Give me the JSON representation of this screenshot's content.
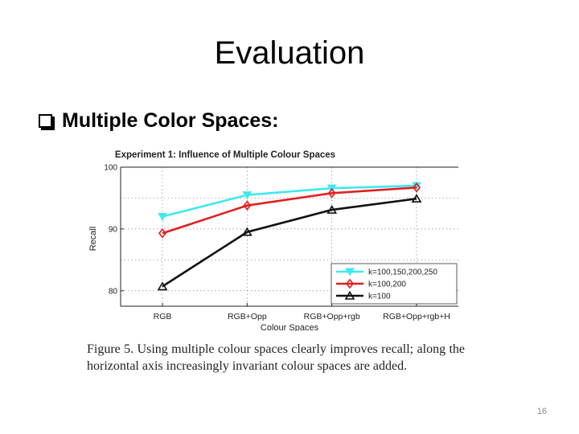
{
  "slide": {
    "title": "Evaluation",
    "bullet": "Multiple Color Spaces:",
    "caption": "Figure 5. Using multiple colour spaces clearly improves recall; along the horizontal axis increasingly invariant colour spaces are added.",
    "page_number": "16"
  },
  "colors": {
    "cyan": "#3ee8f0",
    "red": "#e02020",
    "black": "#111111"
  },
  "chart_data": {
    "type": "line",
    "title": "Experiment 1: Influence of Multiple Colour Spaces",
    "xlabel": "Colour Spaces",
    "ylabel": "Recall",
    "categories": [
      "RGB",
      "RGB+Opp",
      "RGB+Opp+rgb",
      "RGB+Opp+rgb+H"
    ],
    "ylim": [
      77.5,
      100
    ],
    "yticks": [
      80,
      90,
      100
    ],
    "grid": true,
    "legend_position": "bottom-right",
    "series": [
      {
        "name": "k=100,150,200,250",
        "values": [
          92.0,
          95.5,
          96.6,
          97.0
        ],
        "color": "#3ee8f0",
        "marker": "triangle-down"
      },
      {
        "name": "k=100,200",
        "values": [
          89.3,
          93.8,
          95.8,
          96.7
        ],
        "color": "#e02020",
        "marker": "diamond"
      },
      {
        "name": "k=100",
        "values": [
          80.7,
          89.5,
          93.1,
          94.9
        ],
        "color": "#111111",
        "marker": "triangle-up"
      }
    ]
  }
}
